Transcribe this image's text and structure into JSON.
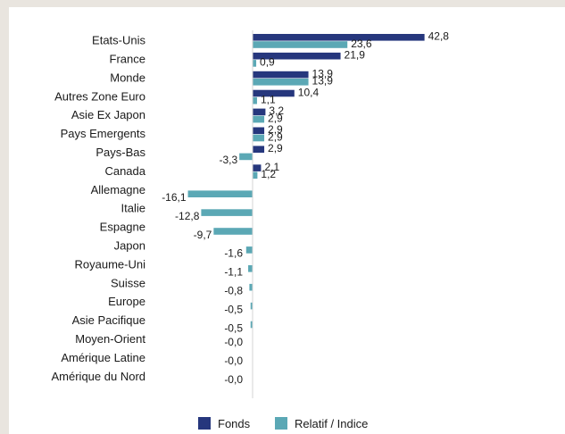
{
  "chart_data": {
    "type": "bar",
    "orientation": "horizontal",
    "categories": [
      "Etats-Unis",
      "France",
      "Monde",
      "Autres Zone Euro",
      "Asie Ex Japon",
      "Pays Emergents",
      "Pays-Bas",
      "Canada",
      "Allemagne",
      "Italie",
      "Espagne",
      "Japon",
      "Royaume-Uni",
      "Suisse",
      "Europe",
      "Asie Pacifique",
      "Moyen-Orient",
      "Amérique Latine",
      "Amérique du Nord"
    ],
    "series": [
      {
        "name": "Fonds",
        "color": "#26377d",
        "values": [
          42.8,
          21.9,
          13.9,
          10.4,
          3.2,
          2.9,
          2.9,
          2.1,
          null,
          null,
          null,
          null,
          null,
          null,
          null,
          null,
          null,
          null,
          null
        ],
        "labels": [
          "42,8",
          "21,9",
          "13,9",
          "10,4",
          "3,2",
          "2,9",
          "2,9",
          "2,1",
          null,
          null,
          null,
          null,
          null,
          null,
          null,
          null,
          null,
          null,
          null
        ]
      },
      {
        "name": "Relatif / Indice",
        "color": "#5ba8b5",
        "values": [
          23.6,
          0.9,
          13.9,
          1.1,
          2.9,
          2.9,
          -3.3,
          1.2,
          -16.1,
          -12.8,
          -9.7,
          -1.6,
          -1.1,
          -0.8,
          -0.5,
          -0.5,
          -0.0,
          -0.0,
          -0.0
        ],
        "labels": [
          "23,6",
          "0,9",
          "13,9",
          "1,1",
          "2,9",
          "2,9",
          "-3,3",
          "1,2",
          "-16,1",
          "-12,8",
          "-9,7",
          "-1,6",
          "-1,1",
          "-0,8",
          "-0,5",
          "-0,5",
          "-0,0",
          "-0,0",
          "-0,0"
        ]
      }
    ],
    "xlim": [
      -17,
      44
    ],
    "legend": "bottom",
    "grid": false
  }
}
